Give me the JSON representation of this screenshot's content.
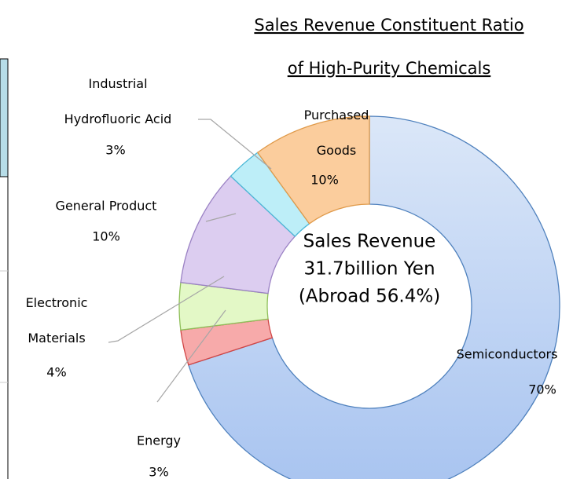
{
  "chart_data": {
    "type": "donut",
    "title": [
      "Sales Revenue Constituent Ratio",
      "of High-Purity Chemicals"
    ],
    "center_text": [
      "Sales Revenue",
      "31.7billion Yen",
      "(Abroad 56.4%)"
    ],
    "categories": [
      "Semiconductors",
      "Energy",
      "Electronic\nMaterials",
      "General Product",
      "Industrial\nHydrofluoric Acid",
      "Purchased\nGoods"
    ],
    "values": [
      70,
      3,
      4,
      10,
      3,
      10
    ],
    "value_labels": [
      "70%",
      "3%",
      "4%",
      "10%",
      "3%",
      "10%"
    ],
    "colors": [
      "#b4cdf3",
      "#f7aaaa",
      "#e3f8c6",
      "#dccdf0",
      "#bdeef8",
      "#fbcd9d"
    ],
    "strokes": [
      "#4f81bd",
      "#d04545",
      "#8fbf5a",
      "#9b82c4",
      "#4bb7d6",
      "#e09a4a"
    ]
  }
}
